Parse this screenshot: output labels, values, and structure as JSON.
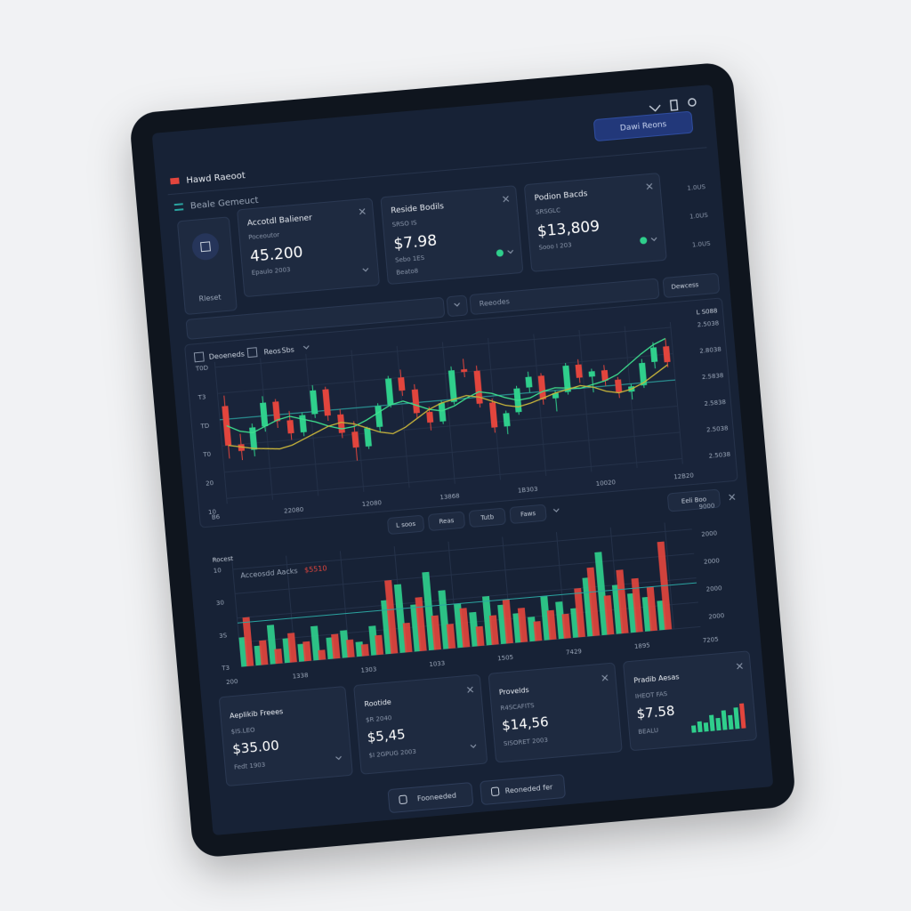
{
  "header": {
    "brand": "Hawd Raeoot",
    "button": "Dawi Reons"
  },
  "section": "Beale Gemeuct",
  "left_tile": "Rleset",
  "cards": [
    {
      "title": "Accotdl Baliener",
      "sub": "Poceoutor",
      "value": "45.200",
      "foot": [
        "Epaulo 2003"
      ]
    },
    {
      "title": "Reside Bodils",
      "sub": "SRSO IS",
      "value": "$7.98",
      "foot": [
        "Sebo 1ES",
        "Beato8"
      ]
    },
    {
      "title": "Podion Bacds",
      "sub": "SRSGLC",
      "value": "$13,809",
      "foot": [
        "Sooo I 203"
      ]
    }
  ],
  "side_ticks": [
    "1.0US",
    "1.0US",
    "1.0US"
  ],
  "search": {
    "placeholder": "Reeodes",
    "button": "Dewcess"
  },
  "price_chart": {
    "type": "candlestick",
    "toolbar": [
      "Deoeneds",
      "Reos",
      "Sbs"
    ],
    "corner_label": "L S088",
    "right_labels": [
      "2.5038",
      "2.8038",
      "2.5838",
      "2.5838",
      "2.5038",
      "2.5038"
    ],
    "left_labels": [
      "T0D",
      "T3",
      "TD",
      "T0",
      "20",
      "10"
    ],
    "x_labels": [
      "B6",
      "22080",
      "12080",
      "13868",
      "1B303",
      "10020",
      "12B20"
    ],
    "ylim": [
      0,
      100
    ],
    "up_color": "#2fcf8c",
    "down_color": "#e2453d",
    "candles": [
      [
        70,
        78,
        30,
        40
      ],
      [
        40,
        48,
        28,
        35
      ],
      [
        35,
        55,
        30,
        52
      ],
      [
        52,
        75,
        48,
        70
      ],
      [
        70,
        72,
        50,
        55
      ],
      [
        55,
        62,
        40,
        45
      ],
      [
        45,
        60,
        42,
        58
      ],
      [
        58,
        80,
        55,
        76
      ],
      [
        76,
        78,
        52,
        56
      ],
      [
        56,
        60,
        38,
        42
      ],
      [
        42,
        50,
        20,
        30
      ],
      [
        30,
        45,
        28,
        44
      ],
      [
        44,
        62,
        40,
        60
      ],
      [
        60,
        82,
        58,
        80
      ],
      [
        80,
        86,
        66,
        70
      ],
      [
        70,
        74,
        48,
        52
      ],
      [
        52,
        56,
        38,
        44
      ],
      [
        44,
        60,
        42,
        58
      ],
      [
        58,
        85,
        56,
        82
      ],
      [
        82,
        90,
        76,
        80
      ],
      [
        80,
        84,
        52,
        55
      ],
      [
        55,
        58,
        32,
        36
      ],
      [
        36,
        48,
        30,
        46
      ],
      [
        46,
        66,
        44,
        64
      ],
      [
        64,
        76,
        60,
        72
      ],
      [
        72,
        74,
        50,
        54
      ],
      [
        54,
        60,
        44,
        58
      ],
      [
        58,
        80,
        56,
        78
      ],
      [
        78,
        82,
        64,
        68
      ],
      [
        68,
        74,
        56,
        72
      ],
      [
        72,
        76,
        60,
        64
      ],
      [
        64,
        66,
        50,
        54
      ],
      [
        54,
        60,
        48,
        58
      ],
      [
        58,
        78,
        56,
        75
      ],
      [
        75,
        90,
        70,
        86
      ],
      [
        86,
        92,
        70,
        74
      ]
    ],
    "lines": [
      {
        "color": "#3ee08f",
        "values": [
          55,
          50,
          48,
          52,
          56,
          58,
          55,
          52,
          48,
          45,
          46,
          50,
          55,
          60,
          62,
          58,
          54,
          52,
          55,
          60,
          64,
          62,
          58,
          55,
          56,
          60,
          62,
          61,
          60,
          62,
          64,
          68,
          75,
          82,
          88,
          92
        ]
      },
      {
        "color": "#c9b53a",
        "values": [
          40,
          38,
          36,
          35,
          34,
          36,
          40,
          44,
          48,
          50,
          48,
          44,
          40,
          38,
          42,
          48,
          54,
          58,
          60,
          62,
          60,
          56,
          52,
          50,
          52,
          55,
          58,
          60,
          62,
          60,
          56,
          54,
          56,
          60,
          66,
          72
        ]
      }
    ],
    "ref_line": 60,
    "ref_color": "#2aa3a0"
  },
  "volume_chart": {
    "type": "bar",
    "button": "Eeli Boo",
    "toolbar": [
      "L soos",
      "Reas",
      "Tutb",
      "Faws"
    ],
    "label": "Rocest",
    "title": "Acceosdd Aacks",
    "title_value": "$5510",
    "left_labels": [
      "10",
      "30",
      "3S",
      "T3"
    ],
    "right_labels": [
      "9000",
      "2000",
      "2000",
      "2000",
      "2000"
    ],
    "x_labels": [
      "200",
      "1338",
      "1303",
      "1033",
      "1505",
      "7429",
      "1895",
      "7205"
    ],
    "ylim": [
      0,
      100
    ],
    "series": [
      {
        "color": "#2fcf8c",
        "values": [
          30,
          20,
          40,
          25,
          18,
          35,
          22,
          28,
          15,
          30,
          55,
          70,
          48,
          80,
          60,
          45,
          35,
          50,
          40,
          30,
          25,
          45,
          38,
          30,
          60,
          85,
          50,
          40,
          35,
          30
        ]
      },
      {
        "color": "#e2453d",
        "values": [
          50,
          25,
          15,
          30,
          20,
          10,
          25,
          18,
          12,
          20,
          75,
          30,
          55,
          35,
          25,
          40,
          20,
          30,
          45,
          35,
          20,
          30,
          25,
          50,
          70,
          40,
          65,
          55,
          45,
          90
        ]
      }
    ],
    "ref_line": 45,
    "ref_color": "#2aa3a0"
  },
  "bottom_cards": [
    {
      "title": "Aeplikib Freees",
      "sub": "$IS.LEO",
      "value": "$35.00",
      "foot": "Fedt 1903"
    },
    {
      "title": "Rootide",
      "sub": "$R 2040",
      "value": "$5,45",
      "foot": "$I 2GPUG 2003"
    },
    {
      "title": "Provelds",
      "sub": "R4SCAFITS",
      "value": "$14,56",
      "foot": "SISORET 2003"
    },
    {
      "title": "Pradib Aesas",
      "sub": "IHEOT FAS",
      "value": "$7.58",
      "foot": "BEALU"
    }
  ],
  "mini_bars": {
    "values": [
      20,
      30,
      25,
      45,
      35,
      55,
      40,
      60,
      70
    ],
    "colors": [
      "#2fcf8c",
      "#2fcf8c",
      "#2fcf8c",
      "#2fcf8c",
      "#2fcf8c",
      "#2fcf8c",
      "#2fcf8c",
      "#2fcf8c",
      "#e2453d"
    ]
  },
  "buttons": [
    "Fooneeded",
    "Reoneded fer"
  ]
}
